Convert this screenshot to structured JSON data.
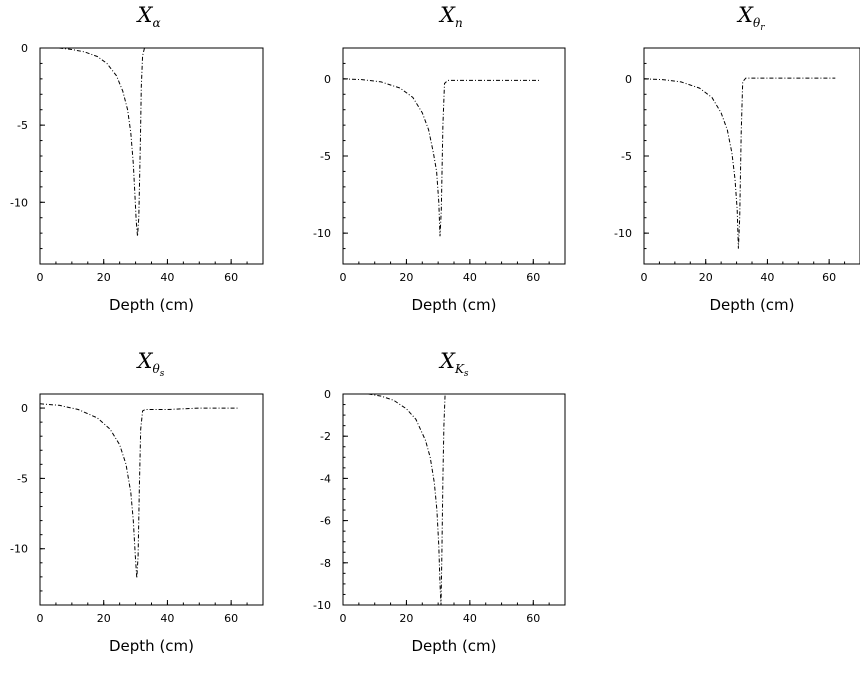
{
  "chart_data": [
    {
      "type": "line",
      "title": "X_α",
      "title_base": "X",
      "title_sub": "α",
      "title_subsub": "",
      "xlabel": "Depth (cm)",
      "ylabel": "",
      "xlim": [
        0,
        70
      ],
      "ylim": [
        -14,
        0
      ],
      "xticks": [
        "0",
        "20",
        "40",
        "60"
      ],
      "yticks": [
        "0",
        "-5",
        "-10"
      ],
      "grid": false,
      "line_style": "dash-dot",
      "series": [
        {
          "x": [
            6,
            10,
            14,
            18,
            21,
            24,
            26,
            27.5,
            28.5,
            29.3,
            29.8,
            30.2,
            30.6,
            31.0,
            31.5,
            31.8,
            32.2,
            32.8
          ],
          "y": [
            0,
            -0.1,
            -0.25,
            -0.55,
            -1.0,
            -1.8,
            -2.8,
            -4.0,
            -5.5,
            -7.5,
            -9.5,
            -11.2,
            -12.2,
            -11.0,
            -6.0,
            -2.5,
            -0.5,
            0
          ]
        }
      ]
    },
    {
      "type": "line",
      "title": "X_n",
      "title_base": "X",
      "title_sub": "n",
      "title_subsub": "",
      "xlabel": "Depth (cm)",
      "ylabel": "",
      "xlim": [
        0,
        70
      ],
      "ylim": [
        -12,
        2
      ],
      "xticks": [
        "0",
        "20",
        "40",
        "60"
      ],
      "yticks": [
        "0",
        "-5",
        "-10"
      ],
      "grid": false,
      "line_style": "dash-dot",
      "series": [
        {
          "x": [
            0,
            6,
            12,
            18,
            22,
            25,
            27,
            28.5,
            29.5,
            30.2,
            30.6,
            31.0,
            31.5,
            32.0,
            33,
            40,
            50,
            62
          ],
          "y": [
            0,
            -0.05,
            -0.2,
            -0.6,
            -1.2,
            -2.2,
            -3.3,
            -4.8,
            -6.0,
            -8.0,
            -10.2,
            -8.5,
            -3.0,
            -0.3,
            -0.1,
            -0.1,
            -0.1,
            -0.1
          ]
        }
      ]
    },
    {
      "type": "line",
      "title": "X_θr",
      "title_base": "X",
      "title_sub": "θ",
      "title_subsub": "r",
      "xlabel": "Depth (cm)",
      "ylabel": "",
      "xlim": [
        0,
        70
      ],
      "ylim": [
        -12,
        2
      ],
      "xticks": [
        "0",
        "20",
        "40",
        "60"
      ],
      "yticks": [
        "0",
        "-5",
        "-10"
      ],
      "grid": false,
      "line_style": "dash-dot",
      "series": [
        {
          "x": [
            0,
            6,
            12,
            18,
            22,
            25,
            27,
            28.5,
            29.5,
            30.2,
            30.6,
            31.0,
            31.5,
            32.0,
            33,
            40,
            50,
            62
          ],
          "y": [
            0,
            -0.05,
            -0.2,
            -0.6,
            -1.2,
            -2.2,
            -3.3,
            -4.8,
            -6.5,
            -8.5,
            -11.0,
            -9.0,
            -3.5,
            -0.2,
            0.05,
            0.05,
            0.05,
            0.05
          ]
        }
      ]
    },
    {
      "type": "line",
      "title": "X_θs",
      "title_base": "X",
      "title_sub": "θ",
      "title_subsub": "s",
      "xlabel": "Depth (cm)",
      "ylabel": "",
      "xlim": [
        0,
        70
      ],
      "ylim": [
        -14,
        1
      ],
      "xticks": [
        "0",
        "20",
        "40",
        "60"
      ],
      "yticks": [
        "0",
        "-5",
        "-10"
      ],
      "grid": false,
      "line_style": "dash-dot",
      "series": [
        {
          "x": [
            0,
            6,
            12,
            18,
            22,
            25,
            27,
            28.5,
            29.3,
            29.9,
            30.4,
            30.8,
            31.2,
            31.6,
            32.2,
            33,
            40,
            50,
            62
          ],
          "y": [
            0.3,
            0.2,
            -0.1,
            -0.7,
            -1.5,
            -2.6,
            -4.0,
            -6.0,
            -8.0,
            -10.5,
            -12.1,
            -10.5,
            -5.5,
            -1.5,
            -0.2,
            -0.1,
            -0.1,
            0,
            0
          ]
        }
      ]
    },
    {
      "type": "line",
      "title": "X_Ks",
      "title_base": "X",
      "title_sub": "K",
      "title_subsub": "s",
      "xlabel": "Depth (cm)",
      "ylabel": "",
      "xlim": [
        0,
        70
      ],
      "ylim": [
        -10,
        0
      ],
      "xticks": [
        "0",
        "20",
        "40",
        "60"
      ],
      "yticks": [
        "0",
        "-2",
        "-4",
        "-6",
        "-8",
        "-10"
      ],
      "grid": false,
      "line_style": "dash-dot",
      "series": [
        {
          "x": [
            8,
            12,
            16,
            20,
            23,
            26,
            27.5,
            28.8,
            29.6,
            30.2,
            30.6,
            30.9,
            31.2,
            31.5,
            31.8,
            32.2
          ],
          "y": [
            0,
            -0.1,
            -0.3,
            -0.7,
            -1.2,
            -2.2,
            -3.0,
            -4.2,
            -5.5,
            -7.2,
            -9.0,
            -10.0,
            -7.5,
            -4.0,
            -1.5,
            0
          ]
        }
      ]
    }
  ]
}
